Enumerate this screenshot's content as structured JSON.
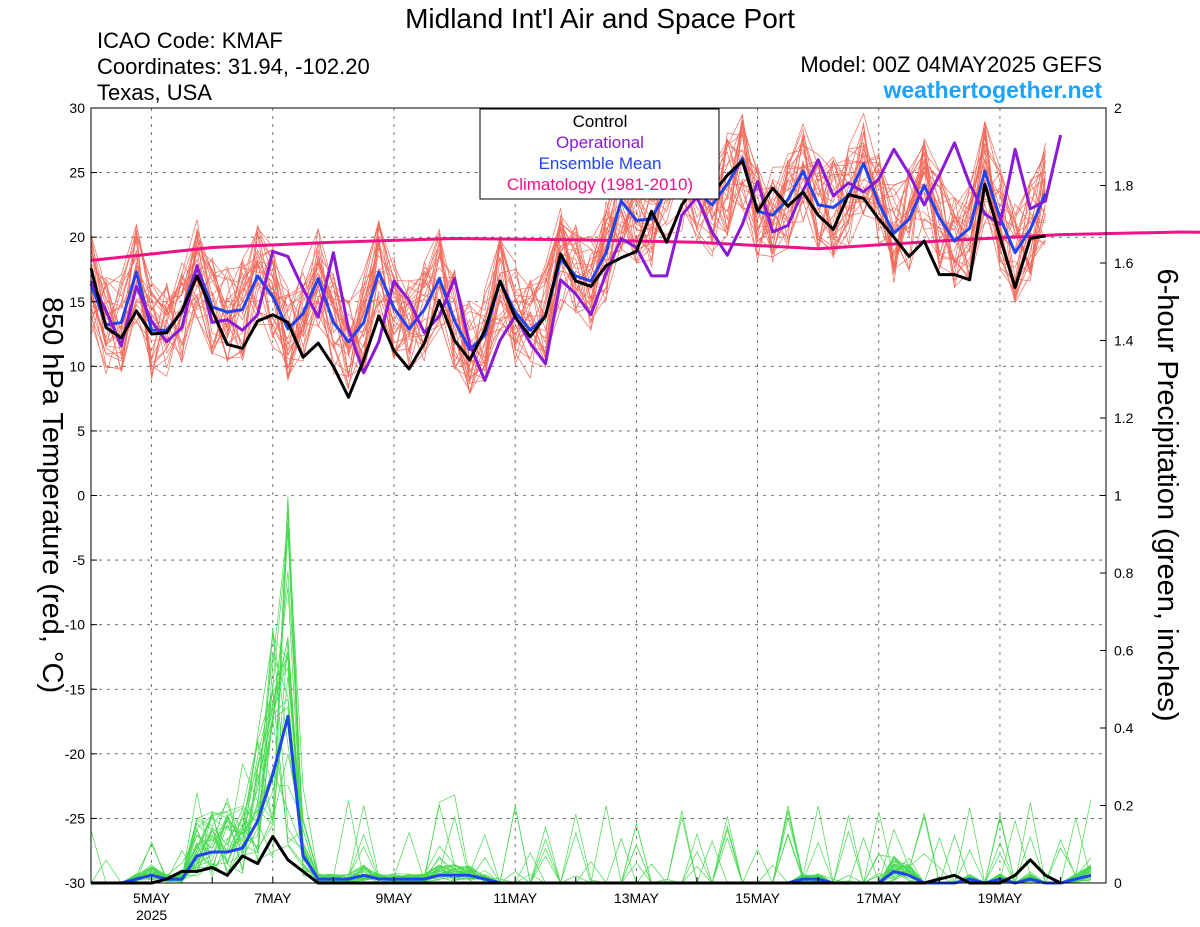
{
  "header": {
    "title": "Midland Int'l Air and Space Port",
    "icao": "ICAO Code: KMAF",
    "coordinates": "Coordinates: 31.94, -102.20",
    "region": "Texas, USA",
    "model": "Model: 00Z 04MAY2025 GEFS",
    "site": "weathertogether.net"
  },
  "colors": {
    "members_temp": "#f26a5a",
    "members_precip": "#47d94f",
    "control": "#000000",
    "operational": "#8a1ad6",
    "ensemble_mean": "#2244ee",
    "climatology": "#ee1188",
    "site": "#1aa3ff"
  },
  "legend": [
    {
      "label": "Control",
      "color": "#000000"
    },
    {
      "label": "Operational",
      "color": "#8a1ad6"
    },
    {
      "label": "Ensemble Mean",
      "color": "#2244ee"
    },
    {
      "label": "Climatology (1981-2010)",
      "color": "#ee1188"
    }
  ],
  "chart_data": {
    "type": "line",
    "ylabel": "850 hPa Temperature (red, °C)",
    "y2label": "6-hour Precipitation (green, inches)",
    "ylim": [
      -30,
      30
    ],
    "y2lim": [
      0,
      2
    ],
    "yticks": [
      "30",
      "25",
      "20",
      "15",
      "10",
      "5",
      "0",
      "-5",
      "-10",
      "-15",
      "-20",
      "-25",
      "-30"
    ],
    "y2ticks": [
      "2",
      "1.8",
      "1.6",
      "1.4",
      "1.2",
      "1",
      "0.8",
      "0.6",
      "0.4",
      "0.2",
      "0"
    ],
    "xlabels": [
      "5MAY",
      "7MAY",
      "9MAY",
      "11MAY",
      "13MAY",
      "15MAY",
      "17MAY",
      "19MAY"
    ],
    "xsublabel": "2025",
    "x_start": "2025-05-04T00Z",
    "x_step_hours": 6,
    "grid": true,
    "legend_position": "top-center",
    "series": [
      {
        "name": "Control",
        "axis": "left",
        "values": [
          17.6,
          13.0,
          12.2,
          14.3,
          12.5,
          12.6,
          14.3,
          17.0,
          14.3,
          11.7,
          11.4,
          13.5,
          14.0,
          13.4,
          10.7,
          11.8,
          10.0,
          7.6,
          10.5,
          13.9,
          11.2,
          9.8,
          11.8,
          15.1,
          12.0,
          10.5,
          12.8,
          16.6,
          13.8,
          12.3,
          13.9,
          18.7,
          16.6,
          16.2,
          17.8,
          18.4,
          18.9,
          22.0,
          19.6,
          22.5,
          24.1,
          23.3,
          24.8,
          25.9,
          22.0,
          23.8,
          22.4,
          23.5,
          21.7,
          20.6,
          23.3,
          23.0,
          21.4,
          20.0,
          18.5,
          19.7,
          17.1,
          17.1,
          16.7,
          24.1,
          20.0,
          16.1,
          19.9,
          20.1
        ]
      },
      {
        "name": "Operational",
        "axis": "left",
        "values": [
          16.6,
          14.3,
          11.6,
          16.2,
          13.5,
          11.9,
          13.0,
          17.8,
          13.4,
          13.6,
          12.8,
          14.0,
          18.9,
          18.5,
          16.0,
          13.8,
          18.8,
          12.9,
          9.5,
          11.9,
          16.6,
          15.1,
          12.6,
          13.9,
          16.8,
          11.7,
          8.9,
          12.0,
          13.9,
          11.8,
          10.2,
          16.7,
          15.6,
          14.0,
          17.2,
          19.9,
          19.2,
          17.0,
          17.0,
          21.7,
          23.1,
          20.4,
          18.6,
          21.0,
          24.3,
          20.4,
          20.9,
          23.6,
          26.0,
          23.2,
          24.2,
          23.5,
          24.5,
          26.8,
          24.9,
          22.5,
          24.8,
          27.3,
          24.1,
          21.8,
          21.0,
          26.8,
          22.2,
          22.8,
          27.9
        ]
      },
      {
        "name": "Ensemble Mean",
        "axis": "left",
        "values": [
          16.4,
          13.2,
          13.4,
          17.3,
          12.8,
          12.8,
          14.2,
          17.7,
          14.6,
          14.2,
          14.4,
          17.0,
          15.4,
          12.9,
          14.1,
          16.8,
          13.4,
          11.9,
          13.4,
          17.3,
          14.5,
          12.9,
          14.4,
          16.8,
          13.5,
          11.3,
          12.4,
          16.6,
          14.2,
          12.8,
          13.9,
          18.3,
          17.0,
          16.6,
          18.8,
          22.8,
          21.3,
          21.4,
          23.6,
          24.4,
          23.5,
          22.5,
          24.1,
          26.1,
          22.0,
          21.7,
          22.9,
          25.1,
          22.5,
          22.3,
          23.2,
          25.7,
          22.6,
          20.3,
          21.4,
          24.0,
          21.5,
          19.7,
          20.7,
          25.1,
          21.5,
          18.8,
          20.6,
          23.4
        ]
      },
      {
        "name": "Climatology (1981-2010)",
        "axis": "left",
        "x_index": [
          0,
          8,
          16,
          24,
          32,
          40,
          48,
          56,
          64,
          72,
          80,
          88,
          96,
          104,
          112,
          120,
          128,
          132
        ],
        "values": [
          18.2,
          19.2,
          19.6,
          19.9,
          19.8,
          19.6,
          19.1,
          19.7,
          20.2,
          20.4,
          20.3,
          20.1,
          20.1,
          19.9,
          19.7,
          20.0,
          20.5,
          20.5
        ]
      },
      {
        "name": "Ensemble Mean precip",
        "axis": "right",
        "values": [
          0,
          0,
          0,
          0.01,
          0.02,
          0.01,
          0.01,
          0.07,
          0.08,
          0.08,
          0.09,
          0.16,
          0.28,
          0.43,
          0.07,
          0.01,
          0.01,
          0.01,
          0.02,
          0.01,
          0.01,
          0.01,
          0.01,
          0.02,
          0.02,
          0.02,
          0.01,
          0,
          0,
          0,
          0,
          0,
          0,
          0,
          0,
          0,
          0,
          0,
          0,
          0,
          0,
          0,
          0,
          0,
          0,
          0,
          0,
          0.01,
          0.01,
          0,
          0,
          0,
          0,
          0.03,
          0.02,
          0,
          0,
          0,
          0.01,
          0,
          0.01,
          0,
          0.01,
          0,
          0,
          0.01,
          0.02
        ]
      },
      {
        "name": "Control precip",
        "axis": "right",
        "values": [
          0,
          0,
          0,
          0,
          0,
          0.01,
          0.03,
          0.03,
          0.04,
          0.02,
          0.07,
          0.05,
          0.12,
          0.06,
          0.03,
          0,
          0,
          0,
          0,
          0,
          0,
          0,
          0,
          0,
          0,
          0,
          0,
          0,
          0,
          0,
          0,
          0,
          0,
          0,
          0,
          0,
          0,
          0,
          0,
          0,
          0,
          0,
          0,
          0,
          0,
          0,
          0,
          0,
          0,
          0,
          0,
          0,
          0,
          0,
          0,
          0,
          0.01,
          0.02,
          0,
          0,
          0,
          0.02,
          0.06,
          0.02,
          0
        ]
      }
    ]
  }
}
